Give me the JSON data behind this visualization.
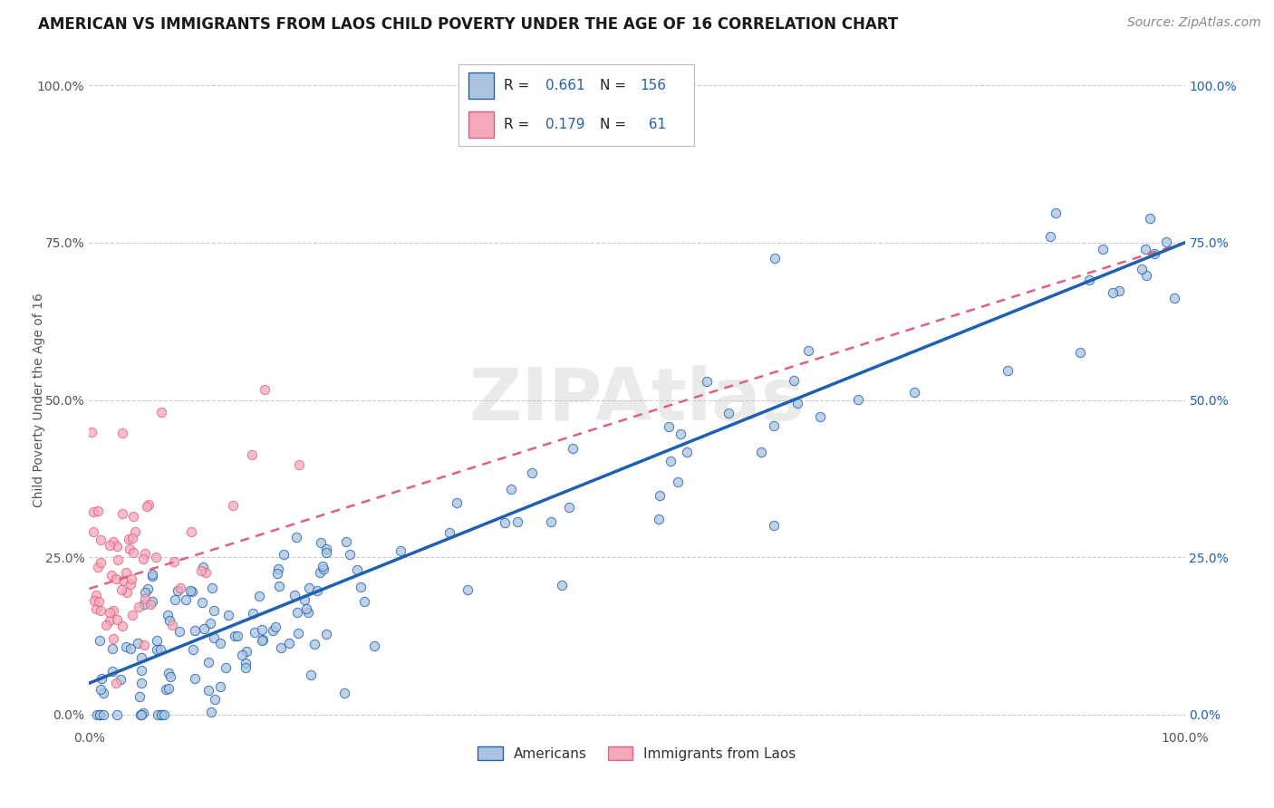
{
  "title": "AMERICAN VS IMMIGRANTS FROM LAOS CHILD POVERTY UNDER THE AGE OF 16 CORRELATION CHART",
  "source": "Source: ZipAtlas.com",
  "ylabel": "Child Poverty Under the Age of 16",
  "xlim": [
    0.0,
    1.0
  ],
  "ylim": [
    -0.05,
    1.05
  ],
  "ytick_labels": [
    "0.0%",
    "25.0%",
    "50.0%",
    "75.0%",
    "100.0%"
  ],
  "ytick_values": [
    0.0,
    0.25,
    0.5,
    0.75,
    1.0
  ],
  "legend_labels": [
    "Americans",
    "Immigrants from Laos"
  ],
  "r_american": 0.661,
  "n_american": 156,
  "r_laos": 0.179,
  "n_laos": 61,
  "american_color": "#aac4e0",
  "laos_color": "#f4a8ba",
  "american_line_color": "#2060b0",
  "laos_line_color": "#e06080",
  "background_color": "#ffffff",
  "title_fontsize": 12,
  "axis_label_fontsize": 10,
  "tick_fontsize": 10,
  "source_fontsize": 10,
  "american_line_intercept": 0.05,
  "american_line_slope": 0.7,
  "laos_line_intercept": 0.2,
  "laos_line_slope": 0.55
}
